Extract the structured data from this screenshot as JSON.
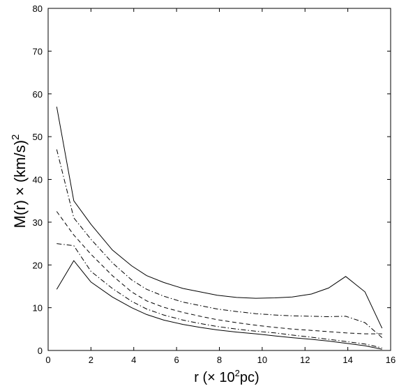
{
  "chart_data": {
    "type": "line",
    "title": "",
    "xlabel": "r (× 10",
    "xlabel_sup": "2",
    "xlabel_end": "pc)",
    "ylabel": "M(r) × (km/s)",
    "ylabel_sup": "2",
    "xlim": [
      0,
      16
    ],
    "ylim": [
      0,
      80
    ],
    "xticks": [
      "0",
      "2",
      "4",
      "6",
      "8",
      "10",
      "12",
      "14",
      "16"
    ],
    "yticks": [
      "0",
      "10",
      "20",
      "30",
      "40",
      "50",
      "60",
      "70",
      "80"
    ],
    "grid": false,
    "legend": "none",
    "series": [
      {
        "style": "solid",
        "x": [
          0.4,
          1.2,
          2.0,
          3.0,
          3.9,
          4.6,
          5.4,
          6.3,
          7.1,
          7.9,
          8.8,
          9.7,
          10.6,
          11.4,
          12.3,
          13.1,
          13.9,
          14.8,
          15.6
        ],
        "values": [
          57,
          35,
          29.5,
          23.5,
          19.8,
          17.5,
          15.9,
          14.5,
          13.7,
          12.9,
          12.4,
          12.2,
          12.3,
          12.5,
          13.2,
          14.6,
          17.3,
          13.7,
          5.2
        ]
      },
      {
        "style": "dashdot",
        "x": [
          0.4,
          1.2,
          2.0,
          3.0,
          3.9,
          4.6,
          5.4,
          6.3,
          7.1,
          7.9,
          8.8,
          9.7,
          10.6,
          11.4,
          12.3,
          13.1,
          13.9,
          14.8,
          15.6
        ],
        "values": [
          47,
          31,
          26,
          20.5,
          16.5,
          14.3,
          12.7,
          11.3,
          10.5,
          9.7,
          9.1,
          8.6,
          8.3,
          8.1,
          8.0,
          7.9,
          8.0,
          6.5,
          3.0
        ]
      },
      {
        "style": "dashed",
        "x": [
          0.4,
          1.2,
          2.0,
          3.0,
          3.9,
          4.6,
          5.4,
          6.3,
          7.1,
          7.9,
          8.8,
          9.7,
          10.6,
          11.4,
          12.3,
          13.1,
          13.9,
          14.8,
          15.6
        ],
        "values": [
          32.5,
          27,
          22.5,
          17.5,
          13.7,
          11.6,
          10.1,
          8.9,
          8.0,
          7.2,
          6.5,
          5.9,
          5.4,
          5.0,
          4.7,
          4.4,
          4.1,
          3.9,
          3.9
        ]
      },
      {
        "style": "dashdot",
        "x": [
          0.4,
          1.2,
          2.0,
          3.0,
          3.9,
          4.6,
          5.4,
          6.3,
          7.1,
          7.9,
          8.8,
          9.7,
          10.6,
          11.4,
          12.3,
          13.1,
          13.9,
          14.8,
          15.6
        ],
        "values": [
          25,
          24.5,
          18.5,
          14.5,
          11.5,
          9.7,
          8.3,
          7.1,
          6.3,
          5.6,
          5.0,
          4.5,
          4.1,
          3.6,
          3.1,
          2.6,
          2.1,
          1.5,
          0.6
        ]
      },
      {
        "style": "solid",
        "x": [
          0.4,
          1.2,
          2.0,
          3.0,
          3.9,
          4.6,
          5.4,
          6.3,
          7.1,
          7.9,
          8.8,
          9.7,
          10.6,
          11.4,
          12.3,
          13.1,
          13.9,
          14.8,
          15.6
        ],
        "values": [
          14.3,
          21,
          16,
          12.5,
          10.0,
          8.4,
          7.1,
          6.1,
          5.4,
          4.8,
          4.3,
          3.9,
          3.4,
          3.0,
          2.6,
          2.2,
          1.7,
          1.1,
          0.3
        ]
      }
    ]
  }
}
